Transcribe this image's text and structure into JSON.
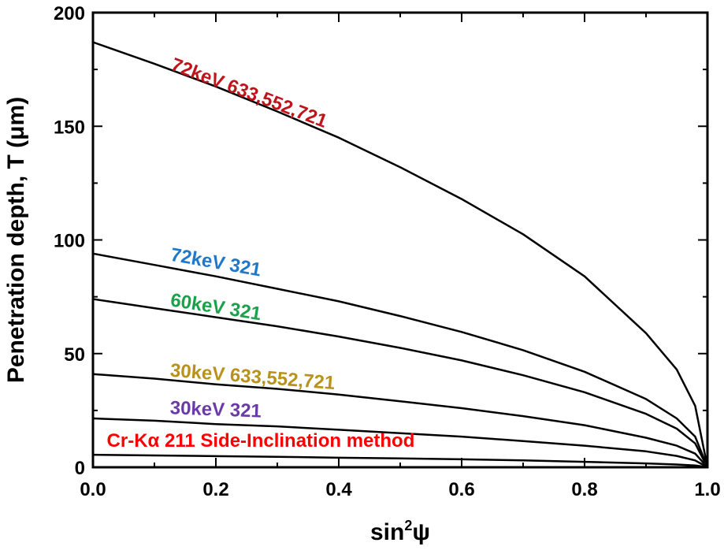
{
  "chart_data": {
    "type": "line",
    "xlabel_base": "sin",
    "xlabel_sup": "2",
    "xlabel_tail": "ψ",
    "ylabel": "Penetration depth, T (μm)",
    "xlim": [
      0.0,
      1.0
    ],
    "ylim": [
      0,
      200
    ],
    "xticks": [
      "0.0",
      "0.2",
      "0.4",
      "0.6",
      "0.8",
      "1.0"
    ],
    "yticks": [
      "0",
      "50",
      "100",
      "150",
      "200"
    ],
    "grid": false,
    "line_color": "#000000",
    "series": [
      {
        "name": "72keV 633,552,721",
        "color": "#c0141c",
        "x": [
          0,
          0.1,
          0.2,
          0.3,
          0.4,
          0.5,
          0.6,
          0.7,
          0.8,
          0.9,
          0.95,
          0.98,
          1.0
        ],
        "y": [
          187,
          177.5,
          167.5,
          156.5,
          145,
          132,
          118,
          102.5,
          84,
          59,
          43,
          27,
          0
        ]
      },
      {
        "name": "72keV 321",
        "color": "#1f78c8",
        "x": [
          0,
          0.1,
          0.2,
          0.3,
          0.4,
          0.5,
          0.6,
          0.7,
          0.8,
          0.9,
          0.95,
          0.98,
          1.0
        ],
        "y": [
          94,
          89,
          84,
          78.5,
          73,
          66.5,
          59.5,
          51.5,
          42,
          30,
          21.5,
          13.5,
          0
        ]
      },
      {
        "name": "60keV 321",
        "color": "#1aa14a",
        "x": [
          0,
          0.1,
          0.2,
          0.3,
          0.4,
          0.5,
          0.6,
          0.7,
          0.8,
          0.9,
          0.95,
          0.98,
          1.0
        ],
        "y": [
          74,
          70,
          66,
          62,
          57.5,
          52.5,
          47,
          40.5,
          33,
          23.5,
          17,
          10.5,
          0
        ]
      },
      {
        "name": "30keV 633,552,721",
        "color": "#b8921a",
        "x": [
          0,
          0.1,
          0.2,
          0.3,
          0.4,
          0.5,
          0.6,
          0.7,
          0.8,
          0.9,
          0.95,
          0.98,
          1.0
        ],
        "y": [
          41,
          39,
          36.5,
          34.5,
          32,
          29,
          26,
          22.5,
          18.5,
          13,
          9.5,
          6,
          0
        ]
      },
      {
        "name": "30keV 321",
        "color": "#6a3aa8",
        "x": [
          0,
          0.1,
          0.2,
          0.3,
          0.4,
          0.5,
          0.6,
          0.7,
          0.8,
          0.9,
          0.95,
          0.98,
          1.0
        ],
        "y": [
          21.5,
          20.5,
          19,
          18,
          16.5,
          15,
          13.5,
          11.5,
          9.5,
          7,
          5,
          3,
          0
        ]
      },
      {
        "name": "Cr-Kα 211 Side-Inclination method",
        "color": "#ff0000",
        "x": [
          0,
          0.1,
          0.2,
          0.3,
          0.4,
          0.5,
          0.6,
          0.7,
          0.8,
          0.9,
          0.95,
          0.98,
          1.0
        ],
        "y": [
          5.5,
          5.2,
          4.9,
          4.6,
          4.2,
          3.9,
          3.5,
          3.0,
          2.4,
          1.7,
          1.2,
          0.8,
          0
        ]
      }
    ],
    "labels": [
      {
        "text": "72keV 633,552,721",
        "color": "#c0141c",
        "x": 0.125,
        "y": 175,
        "rotate": 20.7
      },
      {
        "text": "72keV 321",
        "color": "#1f78c8",
        "x": 0.125,
        "y": 91,
        "rotate": 10
      },
      {
        "text": "60keV 321",
        "color": "#1aa14a",
        "x": 0.125,
        "y": 71,
        "rotate": 9
      },
      {
        "text": "30keV 633,552,721",
        "color": "#b8921a",
        "x": 0.125,
        "y": 40,
        "rotate": 4.5
      },
      {
        "text": "30keV 321",
        "color": "#6a3aa8",
        "x": 0.125,
        "y": 23.5,
        "rotate": 2.2
      },
      {
        "text": "Cr-Kα 211 Side-Inclination method",
        "color": "#ff0000",
        "x": 0.0225,
        "y": 9,
        "rotate": 0
      }
    ]
  }
}
